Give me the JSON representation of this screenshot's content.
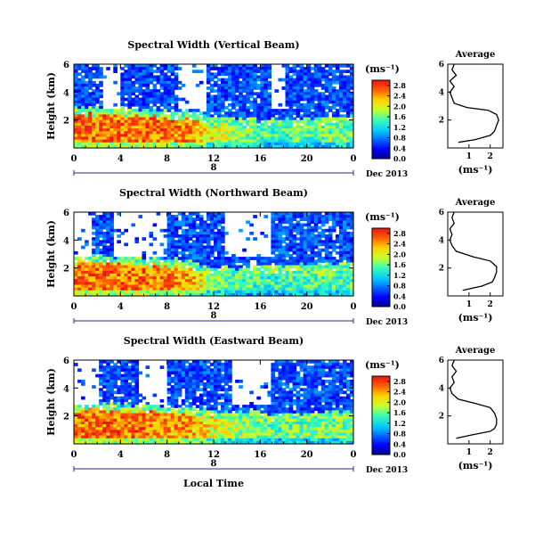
{
  "chart_data": [
    {
      "type": "heatmap",
      "title": "Spectral Width (Vertical Beam)",
      "ylabel": "Height (km)",
      "xlabel": "",
      "x_ticks": [
        "0",
        "4",
        "8",
        "12",
        "16",
        "20",
        "0"
      ],
      "y_ticks": [
        "6",
        "4",
        "2"
      ],
      "date_day": "8",
      "date_label": "Dec 2013",
      "xlim": [
        0,
        24
      ],
      "ylim": [
        0,
        6
      ],
      "colorbar": {
        "unit": "(ms⁻¹)",
        "ticks": [
          "0.0",
          "0.4",
          "0.8",
          "1.2",
          "1.6",
          "2.0",
          "2.4",
          "2.8"
        ],
        "range": [
          0,
          3.0
        ]
      },
      "field": {
        "bl_top": [
          2.4,
          2.4,
          2.3,
          2.2,
          2.1,
          1.7,
          1.6,
          1.5,
          1.5,
          1.7,
          1.8
        ],
        "bl_value": [
          2.6,
          2.6,
          2.6,
          2.6,
          2.5,
          2.0,
          1.7,
          1.5,
          1.5,
          1.6,
          1.7
        ],
        "upper_value": 0.5,
        "gaps": [
          [
            2.5,
            4.0
          ],
          [
            9.0,
            11.5
          ],
          [
            17.0,
            18.0
          ]
        ]
      },
      "profile": {
        "title": "Average",
        "xlabel": "(ms⁻¹)",
        "x_ticks": [
          "1",
          "2"
        ],
        "y_ticks": [
          "6",
          "4",
          "2"
        ],
        "xlim": [
          0,
          2.6
        ],
        "points": [
          [
            0.3,
            6.0
          ],
          [
            0.2,
            5.6
          ],
          [
            0.4,
            5.2
          ],
          [
            0.1,
            4.8
          ],
          [
            0.3,
            4.4
          ],
          [
            0.1,
            4.0
          ],
          [
            0.2,
            3.6
          ],
          [
            0.3,
            3.2
          ],
          [
            0.9,
            2.9
          ],
          [
            1.9,
            2.7
          ],
          [
            2.3,
            2.4
          ],
          [
            2.4,
            2.0
          ],
          [
            2.3,
            1.6
          ],
          [
            2.2,
            1.2
          ],
          [
            2.0,
            0.9
          ],
          [
            1.3,
            0.6
          ],
          [
            0.5,
            0.4
          ]
        ]
      }
    },
    {
      "type": "heatmap",
      "title": "Spectral Width (Northward Beam)",
      "ylabel": "Height (km)",
      "xlabel": "",
      "x_ticks": [
        "0",
        "4",
        "8",
        "12",
        "16",
        "20",
        "0"
      ],
      "y_ticks": [
        "6",
        "4",
        "2"
      ],
      "date_day": "8",
      "date_label": "Dec 2013",
      "xlim": [
        0,
        24
      ],
      "ylim": [
        0,
        6
      ],
      "colorbar": {
        "unit": "(ms⁻¹)",
        "ticks": [
          "0.0",
          "0.4",
          "0.8",
          "1.2",
          "1.6",
          "2.0",
          "2.4",
          "2.8"
        ],
        "range": [
          0,
          3.0
        ]
      },
      "field": {
        "bl_top": [
          2.4,
          2.3,
          2.3,
          2.2,
          2.0,
          1.5,
          1.5,
          1.6,
          1.7,
          1.8,
          1.9
        ],
        "bl_value": [
          2.6,
          2.6,
          2.6,
          2.5,
          2.4,
          1.8,
          1.5,
          1.4,
          1.5,
          1.6,
          1.6
        ],
        "upper_value": 0.5,
        "gaps": [
          [
            0.0,
            1.5
          ],
          [
            3.5,
            8.0
          ],
          [
            13.0,
            17.0
          ]
        ]
      },
      "profile": {
        "title": "Average",
        "xlabel": "(ms⁻¹)",
        "x_ticks": [
          "1",
          "2"
        ],
        "y_ticks": [
          "6",
          "4",
          "2"
        ],
        "xlim": [
          0,
          2.6
        ],
        "points": [
          [
            0.3,
            6.0
          ],
          [
            0.2,
            5.6
          ],
          [
            0.3,
            5.2
          ],
          [
            0.1,
            4.8
          ],
          [
            0.2,
            4.4
          ],
          [
            0.1,
            4.0
          ],
          [
            0.2,
            3.6
          ],
          [
            0.4,
            3.2
          ],
          [
            1.2,
            2.8
          ],
          [
            2.0,
            2.5
          ],
          [
            2.3,
            2.1
          ],
          [
            2.3,
            1.7
          ],
          [
            2.2,
            1.3
          ],
          [
            2.1,
            1.0
          ],
          [
            1.6,
            0.7
          ],
          [
            0.7,
            0.4
          ]
        ]
      }
    },
    {
      "type": "heatmap",
      "title": "Spectral Width (Eastward Beam)",
      "ylabel": "Height (km)",
      "xlabel": "Local Time",
      "x_ticks": [
        "0",
        "4",
        "8",
        "12",
        "16",
        "20",
        "0"
      ],
      "y_ticks": [
        "6",
        "4",
        "2"
      ],
      "date_day": "8",
      "date_label": "Dec 2013",
      "xlim": [
        0,
        24
      ],
      "ylim": [
        0,
        6
      ],
      "colorbar": {
        "unit": "(ms⁻¹)",
        "ticks": [
          "0.0",
          "0.4",
          "0.8",
          "1.2",
          "1.6",
          "2.0",
          "2.4",
          "2.8"
        ],
        "range": [
          0,
          3.0
        ]
      },
      "field": {
        "bl_top": [
          2.4,
          2.4,
          2.3,
          2.3,
          2.1,
          1.9,
          1.8,
          1.7,
          1.6,
          1.8,
          1.9
        ],
        "bl_value": [
          2.6,
          2.6,
          2.6,
          2.5,
          2.4,
          2.0,
          1.8,
          1.6,
          1.6,
          1.7,
          1.7
        ],
        "upper_value": 0.5,
        "gaps": [
          [
            0.0,
            2.0
          ],
          [
            5.5,
            8.0
          ],
          [
            13.5,
            17.0
          ]
        ]
      },
      "profile": {
        "title": "Average",
        "xlabel": "(ms⁻¹)",
        "x_ticks": [
          "1",
          "2"
        ],
        "y_ticks": [
          "6",
          "4",
          "2"
        ],
        "xlim": [
          0,
          2.6
        ],
        "points": [
          [
            0.3,
            6.0
          ],
          [
            0.2,
            5.6
          ],
          [
            0.4,
            5.2
          ],
          [
            0.2,
            4.8
          ],
          [
            0.3,
            4.4
          ],
          [
            0.1,
            4.0
          ],
          [
            0.2,
            3.6
          ],
          [
            0.5,
            3.2
          ],
          [
            1.3,
            2.9
          ],
          [
            2.0,
            2.6
          ],
          [
            2.2,
            2.2
          ],
          [
            2.3,
            1.8
          ],
          [
            2.3,
            1.4
          ],
          [
            2.2,
            1.1
          ],
          [
            2.0,
            0.9
          ],
          [
            1.0,
            0.6
          ],
          [
            0.4,
            0.4
          ]
        ]
      }
    }
  ]
}
